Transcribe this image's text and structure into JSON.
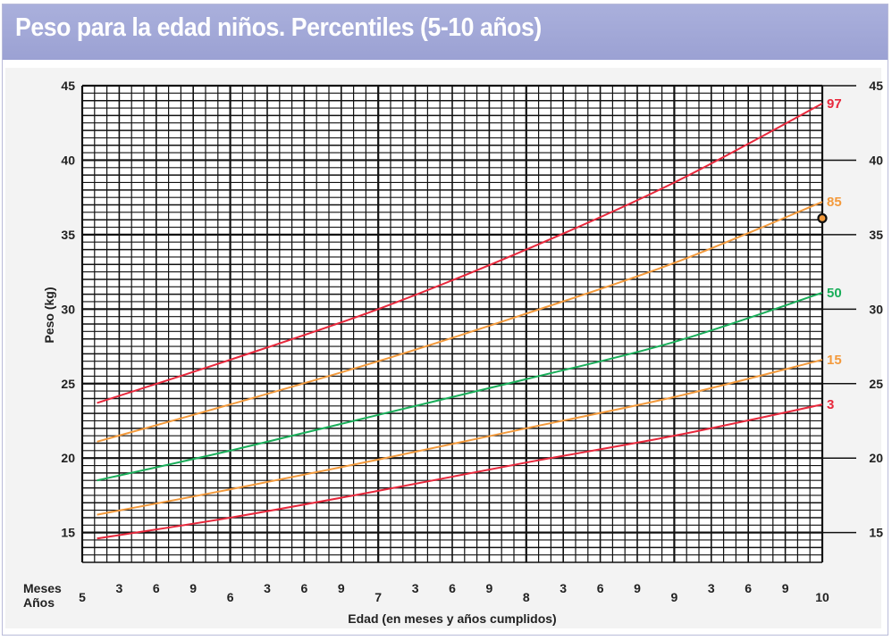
{
  "title": "Peso para la edad niños. Percentiles (5-10 años)",
  "chart_data": {
    "type": "line",
    "title": "Peso para la edad niños. Percentiles (5-10 años)",
    "xlabel": "Edad (en meses y años cumplidos)",
    "ylabel": "Peso (kg)",
    "xlim": [
      5,
      10
    ],
    "ylim": [
      13,
      45
    ],
    "y_ticks": [
      15,
      20,
      25,
      30,
      35,
      40,
      45
    ],
    "x_row_labels": {
      "meses": "Meses",
      "anos": "Años"
    },
    "x_ticks": [
      {
        "x": 5,
        "label": "5",
        "kind": "year"
      },
      {
        "x": 5.25,
        "label": "3",
        "kind": "month"
      },
      {
        "x": 5.5,
        "label": "6",
        "kind": "month"
      },
      {
        "x": 5.75,
        "label": "9",
        "kind": "month"
      },
      {
        "x": 6,
        "label": "6",
        "kind": "year"
      },
      {
        "x": 6.25,
        "label": "3",
        "kind": "month"
      },
      {
        "x": 6.5,
        "label": "6",
        "kind": "month"
      },
      {
        "x": 6.75,
        "label": "9",
        "kind": "month"
      },
      {
        "x": 7,
        "label": "7",
        "kind": "year"
      },
      {
        "x": 7.25,
        "label": "3",
        "kind": "month"
      },
      {
        "x": 7.5,
        "label": "6",
        "kind": "month"
      },
      {
        "x": 7.75,
        "label": "9",
        "kind": "month"
      },
      {
        "x": 8,
        "label": "8",
        "kind": "year"
      },
      {
        "x": 8.25,
        "label": "3",
        "kind": "month"
      },
      {
        "x": 8.5,
        "label": "6",
        "kind": "month"
      },
      {
        "x": 8.75,
        "label": "9",
        "kind": "month"
      },
      {
        "x": 9,
        "label": "9",
        "kind": "year"
      },
      {
        "x": 9.25,
        "label": "3",
        "kind": "month"
      },
      {
        "x": 9.5,
        "label": "6",
        "kind": "month"
      },
      {
        "x": 9.75,
        "label": "9",
        "kind": "month"
      },
      {
        "x": 10,
        "label": "10",
        "kind": "year"
      }
    ],
    "grid": true,
    "series": [
      {
        "name": "97",
        "color": "#e8283c",
        "x": [
          5.1,
          6,
          7,
          8,
          9,
          10
        ],
        "y": [
          23.7,
          26.6,
          30.0,
          34.0,
          38.5,
          43.8
        ]
      },
      {
        "name": "85",
        "color": "#f39a3c",
        "x": [
          5.1,
          6,
          7,
          8,
          9,
          10
        ],
        "y": [
          21.1,
          23.6,
          26.5,
          29.7,
          33.1,
          37.2
        ]
      },
      {
        "name": "50",
        "color": "#1aae5a",
        "x": [
          5.1,
          6,
          7,
          8,
          9,
          10
        ],
        "y": [
          18.5,
          20.5,
          22.9,
          25.3,
          27.8,
          31.1
        ]
      },
      {
        "name": "15",
        "color": "#f39a3c",
        "x": [
          5.1,
          6,
          7,
          8,
          9,
          10
        ],
        "y": [
          16.2,
          17.9,
          19.9,
          22.0,
          24.1,
          26.6
        ]
      },
      {
        "name": "3",
        "color": "#e8283c",
        "x": [
          5.1,
          6,
          7,
          8,
          9,
          10
        ],
        "y": [
          14.6,
          16.0,
          17.8,
          19.7,
          21.5,
          23.6
        ]
      }
    ],
    "marker": {
      "x": 10,
      "y": 36.1,
      "fill": "#f39a3c",
      "stroke": "#111111"
    }
  }
}
